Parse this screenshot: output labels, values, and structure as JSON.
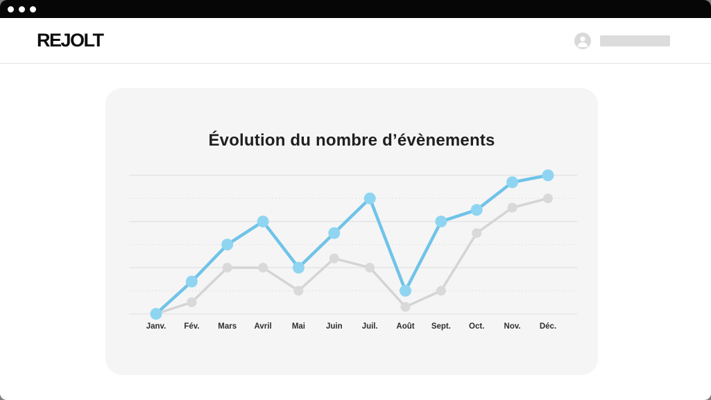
{
  "window": {
    "titlebar_controls_count": 3,
    "titlebar_color": "#060606",
    "control_dot_color": "#ffffff"
  },
  "header": {
    "logo_text": "REJOLT",
    "avatar_icon": "user-icon",
    "username_placeholder": ""
  },
  "card": {
    "title": "Évolution du nombre d’évènements",
    "background": "#f5f5f5"
  },
  "chart_data": {
    "type": "line",
    "title": "Évolution du nombre d’évènements",
    "categories": [
      "Janv.",
      "Fév.",
      "Mars",
      "Avril",
      "Mai",
      "Juin",
      "Juil.",
      "Août",
      "Sept.",
      "Oct.",
      "Nov.",
      "Déc."
    ],
    "series": [
      {
        "name": "gray-series",
        "color": "#d4d4d4",
        "point_color": "#d9d9d9",
        "values": [
          0,
          0.5,
          2,
          2,
          1,
          2.4,
          2,
          0.3,
          1,
          3.5,
          4.6,
          5
        ]
      },
      {
        "name": "blue-series",
        "color": "#6fc3e8",
        "point_color": "#8fd5f1",
        "values": [
          0,
          1.4,
          3,
          4,
          2,
          3.5,
          5,
          1,
          4,
          4.5,
          5.7,
          6
        ]
      }
    ],
    "xlabel": "",
    "ylabel": "",
    "ylim": [
      0,
      6.6
    ],
    "y_axis_labels": "none",
    "legend_position": "none",
    "grid": {
      "horizontal_lines_at": [
        0,
        1,
        2,
        3,
        4,
        5,
        6
      ],
      "style": "even units solid, odd units dotted",
      "solid_color": "#e1e1e1",
      "dotted_color": "#e0e0e0"
    },
    "note": "values in relative grid units (axis unlabeled in mockup)"
  }
}
